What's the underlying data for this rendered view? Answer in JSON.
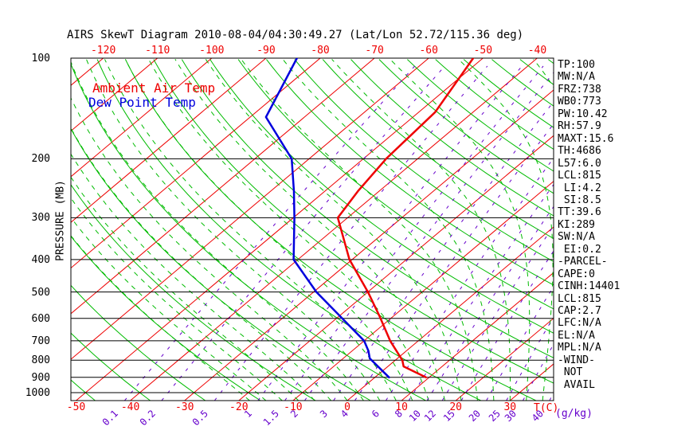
{
  "title": "AIRS SkewT Diagram 2010-08-04/04:30:49.27 (Lat/Lon 52.72/115.36 deg)",
  "legend": {
    "temp": "Ambient Air Temp",
    "dewpoint": "Dew Point Temp"
  },
  "axes": {
    "pressure_label": "PRESSURE (MB)",
    "temp_label": "T(C)",
    "mixing_label": "(g/kg)",
    "pressure_ticks": [
      100,
      200,
      300,
      400,
      500,
      600,
      700,
      800,
      900,
      1000
    ],
    "top_temp_ticks": [
      -120,
      -110,
      -100,
      -90,
      -80,
      -70,
      -60,
      -50,
      -40
    ],
    "bottom_temp_ticks": [
      -50,
      -40,
      -30,
      -20,
      -10,
      0,
      10,
      20,
      30
    ],
    "mixing_ratio_ticks": [
      0.1,
      0.2,
      0.5,
      1,
      1.5,
      2,
      3,
      4,
      6,
      8,
      10,
      12,
      15,
      20,
      25,
      30,
      40
    ]
  },
  "stats": [
    "TP:100",
    "MW:N/A",
    "FRZ:738",
    "WB0:773",
    "PW:10.42",
    "RH:57.9",
    "MAXT:15.6",
    "TH:4686",
    "L57:6.0",
    "LCL:815",
    " LI:4.2",
    " SI:8.5",
    "TT:39.6",
    "KI:289",
    "SW:N/A",
    " EI:0.2",
    "-PARCEL-",
    "CAPE:0",
    "CINH:14401",
    "LCL:815",
    "CAP:2.7",
    "LFC:N/A",
    "EL:N/A",
    "MPL:N/A",
    "-WIND-",
    " NOT",
    " AVAIL"
  ],
  "colors": {
    "temperature_line": "#ee0000",
    "dewpoint_line": "#0000dd",
    "isotherm": "#ee0000",
    "dry_adiabat": "#00bb00",
    "moist_adiabat": "#00bb00",
    "mixing_ratio": "#6600cc",
    "pressure_line": "#000000",
    "text": "#000000",
    "background": "#ffffff"
  },
  "chart_data": {
    "type": "line",
    "title": "AIRS SkewT Diagram 2010-08-04/04:30:49.27 (Lat/Lon 52.72/115.36 deg)",
    "xlabel": "T(C)",
    "ylabel": "PRESSURE (MB)",
    "pressure_range_mb": [
      100,
      1057
    ],
    "bottom_temp_range_c": [
      -50,
      30
    ],
    "top_temp_range_c": [
      -120,
      -40
    ],
    "series": [
      {
        "name": "Ambient Air Temp",
        "color": "#ee0000",
        "points_p_t": [
          [
            900,
            9.4
          ],
          [
            835,
            2.9
          ],
          [
            800,
            1.3
          ],
          [
            700,
            -5.2
          ],
          [
            590,
            -12.6
          ],
          [
            500,
            -20.0
          ],
          [
            400,
            -30.5
          ],
          [
            300,
            -41.8
          ],
          [
            250,
            -43.9
          ],
          [
            200,
            -45.8
          ],
          [
            145,
            -47.0
          ],
          [
            100,
            -51.8
          ]
        ]
      },
      {
        "name": "Dew Point Temp",
        "color": "#0000dd",
        "points_p_t": [
          [
            900,
            2.6
          ],
          [
            790,
            -5.1
          ],
          [
            750,
            -7.0
          ],
          [
            700,
            -10.0
          ],
          [
            590,
            -19.9
          ],
          [
            500,
            -29.5
          ],
          [
            400,
            -40.8
          ],
          [
            300,
            -49.8
          ],
          [
            250,
            -55.7
          ],
          [
            200,
            -63.2
          ],
          [
            150,
            -77.1
          ],
          [
            100,
            -84.3
          ]
        ]
      }
    ],
    "background": {
      "pressure_lines_mb": [
        100,
        200,
        300,
        400,
        500,
        600,
        700,
        800,
        900,
        1000
      ],
      "isotherms_c": {
        "min": -130,
        "max": 40,
        "step": 10
      },
      "dry_adiabats_theta_c": {
        "min": -60,
        "max": 200,
        "step": 10
      },
      "moist_adiabats_start_c": {
        "min": -18,
        "max": 39,
        "step": 3
      },
      "mixing_ratio_lines_g_kg": [
        0.1,
        0.2,
        0.5,
        1,
        1.5,
        2,
        3,
        4,
        6,
        8,
        10,
        12,
        15,
        20,
        25,
        30,
        40
      ],
      "legend_position": "upper-left-inside",
      "grid": "skew-t log-p"
    }
  }
}
